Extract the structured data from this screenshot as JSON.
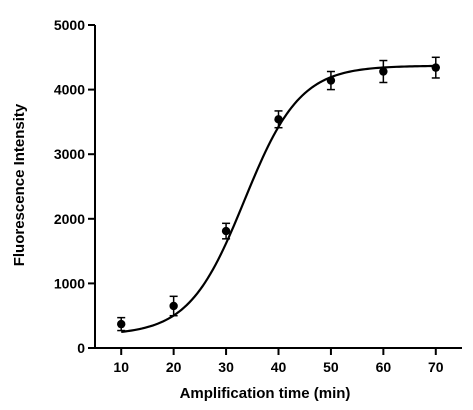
{
  "chart_data": {
    "type": "scatter",
    "title": "",
    "xlabel": "Amplification time (min)",
    "ylabel": "Fluorescence Intensity",
    "xlim": [
      5,
      75
    ],
    "ylim": [
      0,
      5000
    ],
    "x_ticks": [
      10,
      20,
      30,
      40,
      50,
      60,
      70
    ],
    "y_ticks": [
      0,
      1000,
      2000,
      3000,
      4000,
      5000
    ],
    "grid": false,
    "legend": "none",
    "series": [
      {
        "x": [
          10,
          20,
          30,
          40,
          50,
          60,
          70
        ],
        "y": [
          370,
          650,
          1810,
          3540,
          4140,
          4280,
          4340
        ],
        "error": [
          100,
          150,
          120,
          130,
          140,
          170,
          160
        ],
        "fit": "sigmoidal"
      }
    ],
    "colors": {
      "marks": "#000000"
    }
  }
}
